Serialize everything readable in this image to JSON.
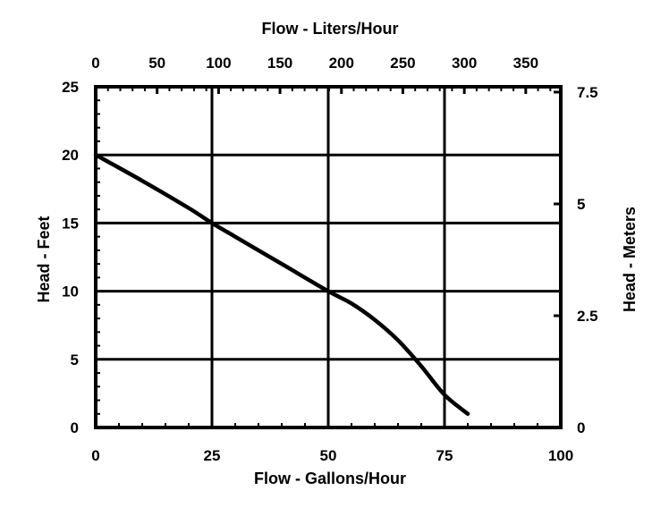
{
  "chart_data": {
    "type": "line",
    "title": "",
    "x_bottom": {
      "label": "Flow - Gallons/Hour",
      "range": [
        0,
        100
      ],
      "ticks": [
        "0",
        "25",
        "50",
        "75",
        "100"
      ]
    },
    "x_top": {
      "label": "Flow - Liters/Hour",
      "range": [
        0,
        378.5
      ],
      "ticks": [
        "0",
        "50",
        "100",
        "150",
        "200",
        "250",
        "300",
        "350"
      ]
    },
    "y_left": {
      "label": "Head - Feet",
      "range": [
        0,
        25
      ],
      "ticks": [
        "0",
        "5",
        "10",
        "15",
        "20",
        "25"
      ]
    },
    "y_right": {
      "label": "Head - Meters",
      "range": [
        0,
        7.62
      ],
      "ticks": [
        "0",
        "2.5",
        "5",
        "7.5"
      ]
    },
    "grid": true,
    "series": [
      {
        "x": [
          0,
          10,
          20,
          25,
          30,
          40,
          50,
          55,
          60,
          65,
          70,
          75,
          80
        ],
        "y": [
          20,
          18.1,
          16.1,
          15,
          14,
          12,
          10,
          9.1,
          7.9,
          6.4,
          4.5,
          2.4,
          1
        ]
      }
    ]
  }
}
